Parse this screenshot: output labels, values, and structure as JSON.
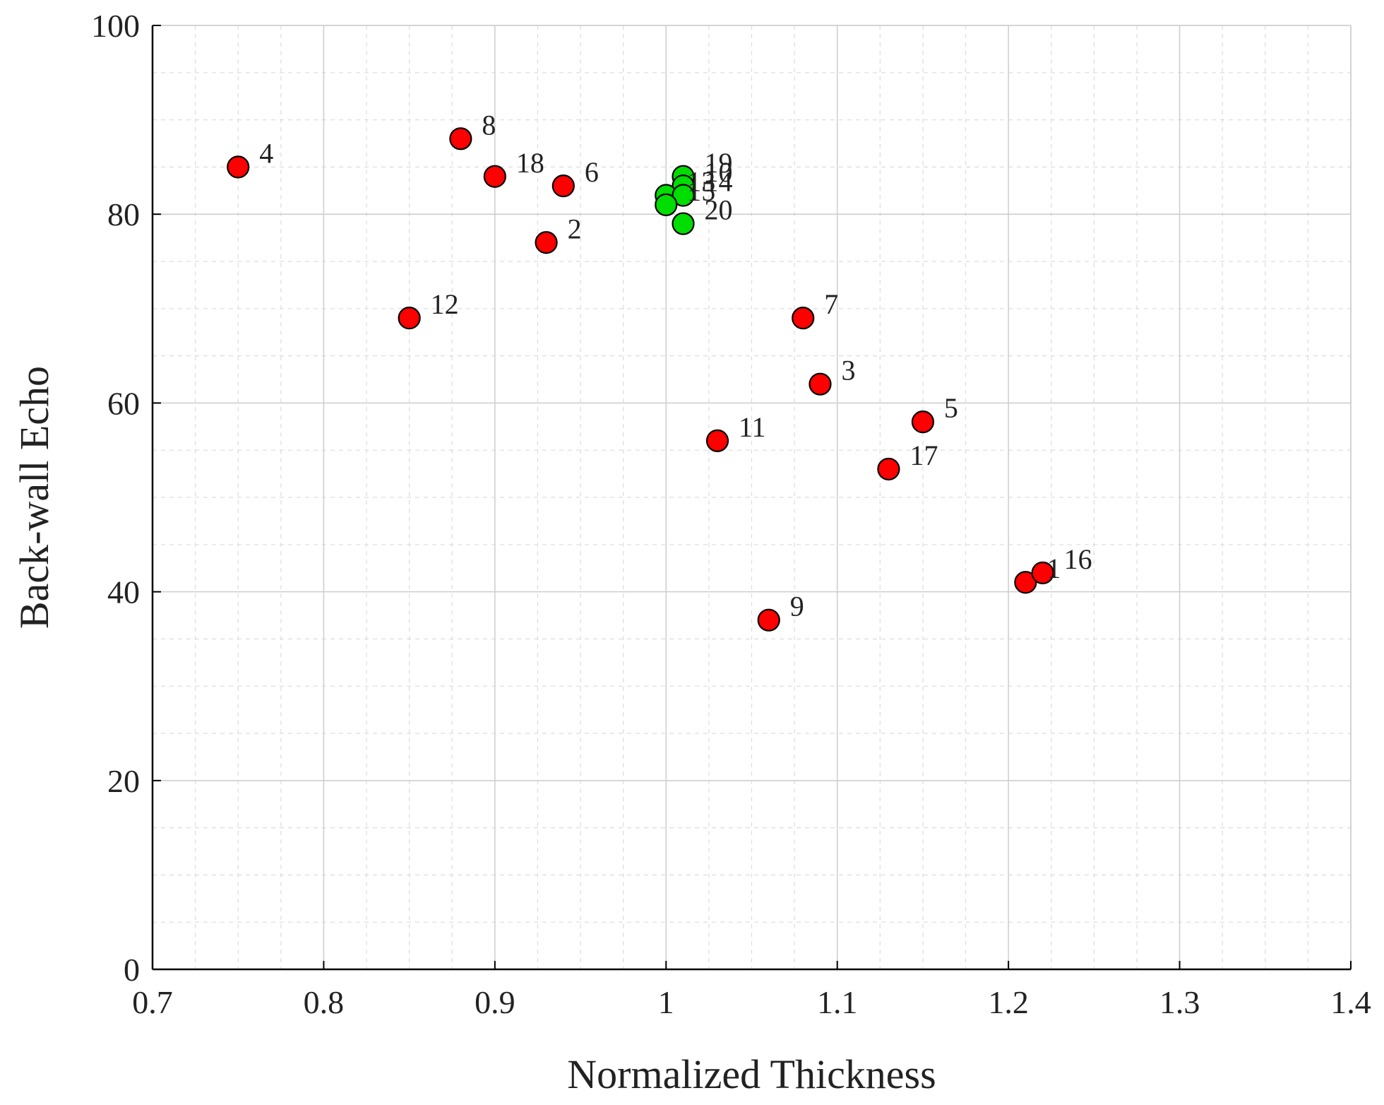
{
  "chart_data": {
    "type": "scatter",
    "title": "",
    "xlabel": "Normalized Thickness",
    "ylabel": "Back-wall Echo",
    "xlim": [
      0.7,
      1.4
    ],
    "ylim": [
      0,
      100
    ],
    "xticks": [
      0.7,
      0.8,
      0.9,
      1.0,
      1.1,
      1.2,
      1.3,
      1.4
    ],
    "xtick_labels": [
      "0.7",
      "0.8",
      "0.9",
      "1",
      "1.1",
      "1.2",
      "1.3",
      "1.4"
    ],
    "yticks": [
      0,
      20,
      40,
      60,
      80,
      100
    ],
    "ytick_labels": [
      "0",
      "20",
      "40",
      "60",
      "80",
      "100"
    ],
    "grid": true,
    "legend": "none",
    "colors": {
      "red_group": "#ff0000",
      "green_group": "#00dd00"
    },
    "points": [
      {
        "label": "1",
        "x": 1.21,
        "y": 41,
        "color": "red"
      },
      {
        "label": "2",
        "x": 0.93,
        "y": 77,
        "color": "red"
      },
      {
        "label": "3",
        "x": 1.09,
        "y": 62,
        "color": "red"
      },
      {
        "label": "4",
        "x": 0.75,
        "y": 85,
        "color": "red"
      },
      {
        "label": "5",
        "x": 1.15,
        "y": 58,
        "color": "red"
      },
      {
        "label": "6",
        "x": 0.94,
        "y": 83,
        "color": "red"
      },
      {
        "label": "7",
        "x": 1.08,
        "y": 69,
        "color": "red"
      },
      {
        "label": "8",
        "x": 0.88,
        "y": 88,
        "color": "red"
      },
      {
        "label": "9",
        "x": 1.06,
        "y": 37,
        "color": "red"
      },
      {
        "label": "11",
        "x": 1.03,
        "y": 56,
        "color": "red"
      },
      {
        "label": "12",
        "x": 0.85,
        "y": 69,
        "color": "red"
      },
      {
        "label": "16",
        "x": 1.22,
        "y": 42,
        "color": "red"
      },
      {
        "label": "17",
        "x": 1.13,
        "y": 53,
        "color": "red"
      },
      {
        "label": "18",
        "x": 0.9,
        "y": 84,
        "color": "red"
      },
      {
        "label": "19",
        "x": 1.01,
        "y": 84,
        "color": "green"
      },
      {
        "label": "10",
        "x": 1.01,
        "y": 83,
        "color": "green"
      },
      {
        "label": "13",
        "x": 1.0,
        "y": 82,
        "color": "green"
      },
      {
        "label": "14",
        "x": 1.01,
        "y": 82,
        "color": "green"
      },
      {
        "label": "15",
        "x": 1.0,
        "y": 81,
        "color": "green"
      },
      {
        "label": "20",
        "x": 1.01,
        "y": 79,
        "color": "green"
      }
    ]
  }
}
